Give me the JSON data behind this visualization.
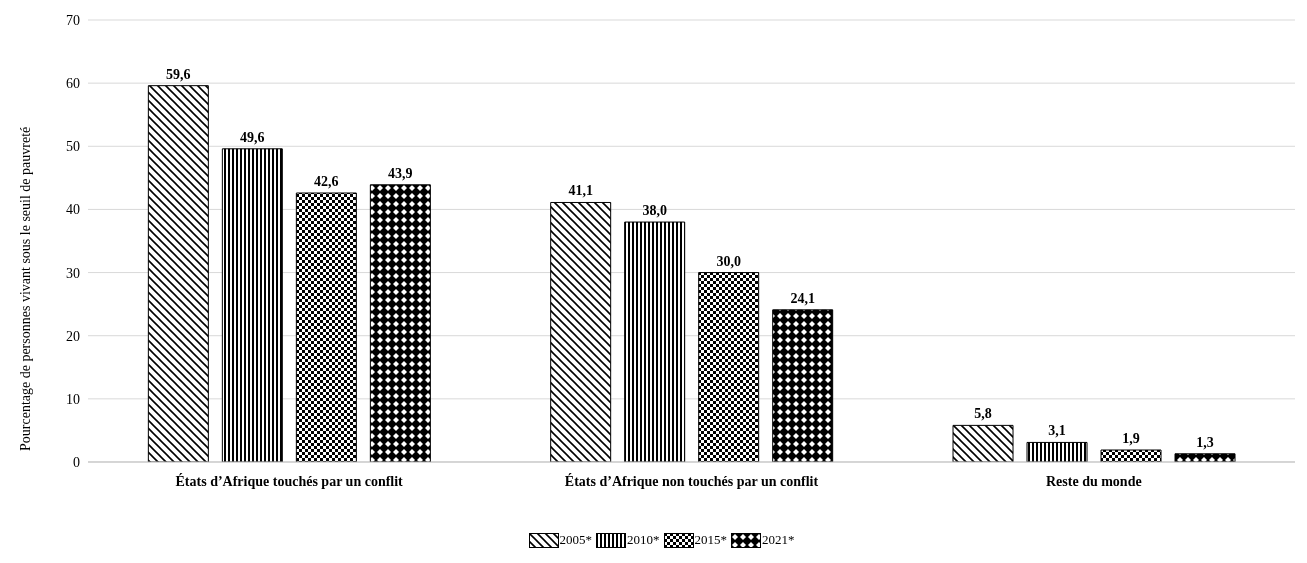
{
  "chart_data": {
    "type": "bar",
    "ylabel": "Pourcentage de personnes vivant sous le seuil de pauvreté",
    "categories": [
      "États d’Afrique touchés par un conflit",
      "États d’Afrique non touchés par un conflit",
      "Reste du monde"
    ],
    "series": [
      {
        "name": "2005*",
        "color": "#000000",
        "values": [
          59.6,
          41.1,
          5.8
        ],
        "value_labels": [
          "59,6",
          "41,1",
          "5,8"
        ]
      },
      {
        "name": "2010*",
        "color": "#000000",
        "values": [
          49.6,
          38.0,
          3.1
        ],
        "value_labels": [
          "49,6",
          "38,0",
          "3,1"
        ]
      },
      {
        "name": "2015*",
        "color": "#000000",
        "values": [
          42.6,
          30.0,
          1.9
        ],
        "value_labels": [
          "42,6",
          "30,0",
          "1,9"
        ]
      },
      {
        "name": "2021*",
        "color": "#000000",
        "values": [
          43.9,
          24.1,
          1.3
        ],
        "value_labels": [
          "43,9",
          "24,1",
          "1,3"
        ]
      }
    ],
    "ylim": [
      0,
      70
    ],
    "yticks": [
      0,
      10,
      20,
      30,
      40,
      50,
      60,
      70
    ],
    "grid": "y",
    "legend": "bottom"
  }
}
